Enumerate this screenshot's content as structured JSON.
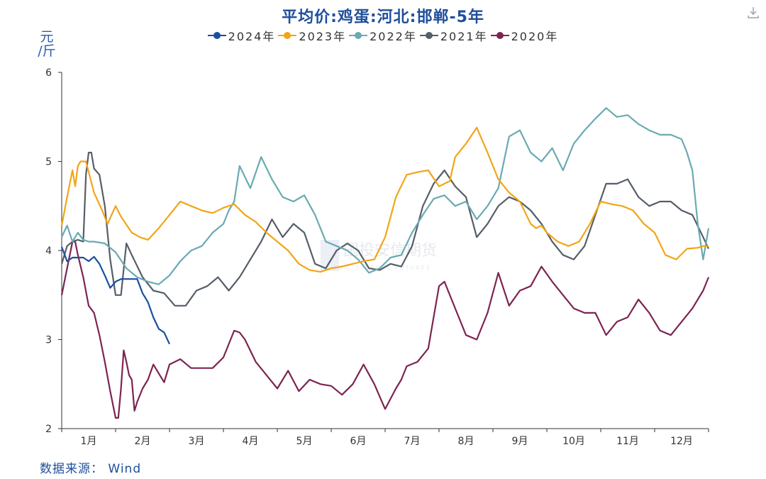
{
  "title": "平均价:鸡蛋:河北:邯郸-5年",
  "ylabel": "元/斤",
  "source": "数据来源： Wind",
  "watermark": {
    "cn": "国投安信期货",
    "en": "SDIC ESSENCE FUTURES"
  },
  "icons": {
    "download": "download-icon"
  },
  "chart_data": {
    "type": "line",
    "title": "平均价:鸡蛋:河北:邯郸-5年",
    "ylabel": "元/斤",
    "xlabel": "",
    "ylim": [
      2,
      6
    ],
    "xlim": [
      0,
      12
    ],
    "yticks": [
      "2",
      "3",
      "4",
      "5",
      "6"
    ],
    "xticks": [
      "1月",
      "2月",
      "3月",
      "4月",
      "5月",
      "6月",
      "7月",
      "8月",
      "9月",
      "10月",
      "11月",
      "12月"
    ],
    "legend_position": "top-center",
    "series": [
      {
        "name": "2024年",
        "color": "#1a4fa0",
        "x": [
          0,
          0.1,
          0.2,
          0.4,
          0.5,
          0.6,
          0.7,
          0.8,
          0.9,
          1.0,
          1.1,
          1.25,
          1.4,
          1.5,
          1.6,
          1.7,
          1.8,
          1.9,
          2.0
        ],
        "y": [
          4.04,
          3.88,
          3.92,
          3.92,
          3.88,
          3.93,
          3.85,
          3.72,
          3.58,
          3.65,
          3.68,
          3.68,
          3.68,
          3.52,
          3.42,
          3.25,
          3.12,
          3.08,
          2.95
        ]
      },
      {
        "name": "2023年",
        "color": "#f2a516",
        "x": [
          0,
          0.1,
          0.2,
          0.25,
          0.3,
          0.35,
          0.45,
          0.6,
          0.75,
          0.85,
          1.0,
          1.1,
          1.3,
          1.45,
          1.6,
          1.8,
          2.0,
          2.2,
          2.4,
          2.6,
          2.8,
          3.0,
          3.2,
          3.4,
          3.6,
          3.8,
          4.0,
          4.2,
          4.4,
          4.6,
          4.8,
          5.0,
          5.2,
          5.4,
          5.6,
          5.8,
          6.0,
          6.2,
          6.4,
          6.6,
          6.8,
          7.0,
          7.2,
          7.3,
          7.5,
          7.7,
          7.9,
          8.1,
          8.3,
          8.5,
          8.7,
          8.8,
          8.9,
          9.0,
          9.2,
          9.4,
          9.6,
          9.8,
          10.0,
          10.2,
          10.4,
          10.6,
          10.8,
          11.0,
          11.2,
          11.4,
          11.6,
          11.8,
          11.9,
          12.0
        ],
        "y": [
          4.28,
          4.6,
          4.9,
          4.72,
          4.95,
          5.0,
          5.0,
          4.65,
          4.45,
          4.3,
          4.5,
          4.38,
          4.2,
          4.15,
          4.12,
          4.25,
          4.4,
          4.55,
          4.5,
          4.45,
          4.42,
          4.48,
          4.52,
          4.4,
          4.32,
          4.2,
          4.1,
          4.0,
          3.85,
          3.78,
          3.76,
          3.8,
          3.82,
          3.85,
          3.88,
          3.9,
          4.15,
          4.6,
          4.85,
          4.88,
          4.9,
          4.72,
          4.78,
          5.05,
          5.2,
          5.38,
          5.1,
          4.8,
          4.65,
          4.55,
          4.3,
          4.25,
          4.28,
          4.2,
          4.1,
          4.05,
          4.1,
          4.3,
          4.55,
          4.52,
          4.5,
          4.45,
          4.3,
          4.2,
          3.95,
          3.9,
          4.02,
          4.03,
          4.05,
          4.05
        ]
      },
      {
        "name": "2022年",
        "color": "#6aaab2",
        "x": [
          0,
          0.1,
          0.2,
          0.3,
          0.4,
          0.5,
          0.6,
          0.8,
          1.0,
          1.2,
          1.4,
          1.6,
          1.8,
          2.0,
          2.2,
          2.4,
          2.6,
          2.8,
          3.0,
          3.1,
          3.2,
          3.3,
          3.5,
          3.7,
          3.9,
          4.1,
          4.3,
          4.5,
          4.7,
          4.9,
          5.1,
          5.3,
          5.5,
          5.7,
          5.9,
          6.1,
          6.3,
          6.5,
          6.7,
          6.9,
          7.1,
          7.3,
          7.5,
          7.7,
          7.9,
          8.1,
          8.3,
          8.5,
          8.7,
          8.9,
          9.1,
          9.3,
          9.5,
          9.7,
          9.9,
          10.1,
          10.3,
          10.5,
          10.7,
          10.9,
          11.1,
          11.3,
          11.5,
          11.6,
          11.7,
          11.8,
          11.9,
          12.0
        ],
        "y": [
          4.15,
          4.28,
          4.1,
          4.2,
          4.12,
          4.1,
          4.1,
          4.08,
          3.98,
          3.8,
          3.7,
          3.65,
          3.62,
          3.72,
          3.88,
          4.0,
          4.05,
          4.2,
          4.3,
          4.45,
          4.55,
          4.95,
          4.7,
          5.05,
          4.8,
          4.6,
          4.55,
          4.62,
          4.4,
          4.1,
          4.05,
          4.0,
          3.9,
          3.75,
          3.8,
          3.92,
          3.95,
          4.2,
          4.4,
          4.58,
          4.62,
          4.5,
          4.55,
          4.35,
          4.5,
          4.7,
          5.28,
          5.35,
          5.1,
          5.0,
          5.15,
          4.9,
          5.2,
          5.35,
          5.48,
          5.6,
          5.5,
          5.52,
          5.42,
          5.35,
          5.3,
          5.3,
          5.25,
          5.1,
          4.9,
          4.3,
          3.9,
          4.25
        ]
      },
      {
        "name": "2021年",
        "color": "#555e69",
        "x": [
          0,
          0.1,
          0.2,
          0.3,
          0.4,
          0.45,
          0.5,
          0.55,
          0.6,
          0.7,
          0.8,
          0.9,
          1.0,
          1.1,
          1.2,
          1.3,
          1.5,
          1.7,
          1.9,
          2.1,
          2.3,
          2.5,
          2.7,
          2.9,
          3.1,
          3.3,
          3.5,
          3.7,
          3.9,
          4.1,
          4.3,
          4.5,
          4.7,
          4.9,
          5.1,
          5.3,
          5.5,
          5.7,
          5.9,
          6.1,
          6.3,
          6.5,
          6.7,
          6.9,
          7.1,
          7.3,
          7.5,
          7.7,
          7.9,
          8.1,
          8.3,
          8.5,
          8.7,
          8.9,
          9.1,
          9.3,
          9.5,
          9.7,
          9.9,
          10.1,
          10.3,
          10.5,
          10.7,
          10.9,
          11.1,
          11.3,
          11.5,
          11.7,
          11.9,
          12.0
        ],
        "y": [
          3.85,
          4.05,
          4.1,
          4.12,
          4.1,
          4.85,
          5.1,
          5.1,
          4.92,
          4.85,
          4.5,
          3.9,
          3.5,
          3.5,
          4.08,
          3.95,
          3.7,
          3.55,
          3.52,
          3.38,
          3.38,
          3.55,
          3.6,
          3.7,
          3.55,
          3.7,
          3.9,
          4.1,
          4.35,
          4.15,
          4.3,
          4.2,
          3.85,
          3.8,
          4.0,
          4.08,
          4.0,
          3.8,
          3.78,
          3.85,
          3.82,
          4.05,
          4.5,
          4.75,
          4.9,
          4.72,
          4.6,
          4.15,
          4.3,
          4.5,
          4.6,
          4.55,
          4.45,
          4.3,
          4.1,
          3.95,
          3.9,
          4.05,
          4.4,
          4.75,
          4.75,
          4.8,
          4.6,
          4.5,
          4.55,
          4.55,
          4.45,
          4.4,
          4.15,
          4.02
        ]
      },
      {
        "name": "2020年",
        "color": "#7c2452",
        "x": [
          0,
          0.1,
          0.2,
          0.25,
          0.3,
          0.4,
          0.5,
          0.6,
          0.7,
          0.8,
          0.9,
          1.0,
          1.05,
          1.1,
          1.15,
          1.2,
          1.25,
          1.3,
          1.35,
          1.4,
          1.5,
          1.6,
          1.7,
          1.8,
          1.9,
          2.0,
          2.2,
          2.4,
          2.6,
          2.8,
          3.0,
          3.2,
          3.3,
          3.4,
          3.6,
          3.8,
          4.0,
          4.2,
          4.4,
          4.6,
          4.8,
          5.0,
          5.2,
          5.4,
          5.6,
          5.8,
          6.0,
          6.2,
          6.3,
          6.4,
          6.6,
          6.8,
          7.0,
          7.1,
          7.3,
          7.5,
          7.7,
          7.9,
          8.1,
          8.3,
          8.5,
          8.7,
          8.9,
          9.1,
          9.3,
          9.5,
          9.7,
          9.9,
          10.1,
          10.3,
          10.5,
          10.7,
          10.9,
          11.1,
          11.3,
          11.5,
          11.7,
          11.9,
          12.0
        ],
        "y": [
          3.5,
          3.8,
          4.1,
          4.1,
          3.95,
          3.7,
          3.38,
          3.3,
          3.05,
          2.75,
          2.42,
          2.12,
          2.12,
          2.45,
          2.88,
          2.75,
          2.6,
          2.55,
          2.2,
          2.3,
          2.45,
          2.55,
          2.72,
          2.62,
          2.52,
          2.72,
          2.78,
          2.68,
          2.68,
          2.68,
          2.8,
          3.1,
          3.08,
          3.0,
          2.75,
          2.6,
          2.45,
          2.65,
          2.42,
          2.55,
          2.5,
          2.48,
          2.38,
          2.5,
          2.72,
          2.5,
          2.22,
          2.45,
          2.55,
          2.7,
          2.75,
          2.9,
          3.6,
          3.65,
          3.35,
          3.05,
          3.0,
          3.3,
          3.75,
          3.38,
          3.55,
          3.6,
          3.82,
          3.65,
          3.5,
          3.35,
          3.3,
          3.3,
          3.05,
          3.2,
          3.25,
          3.45,
          3.3,
          3.1,
          3.05,
          3.2,
          3.35,
          3.55,
          3.7
        ]
      }
    ]
  }
}
